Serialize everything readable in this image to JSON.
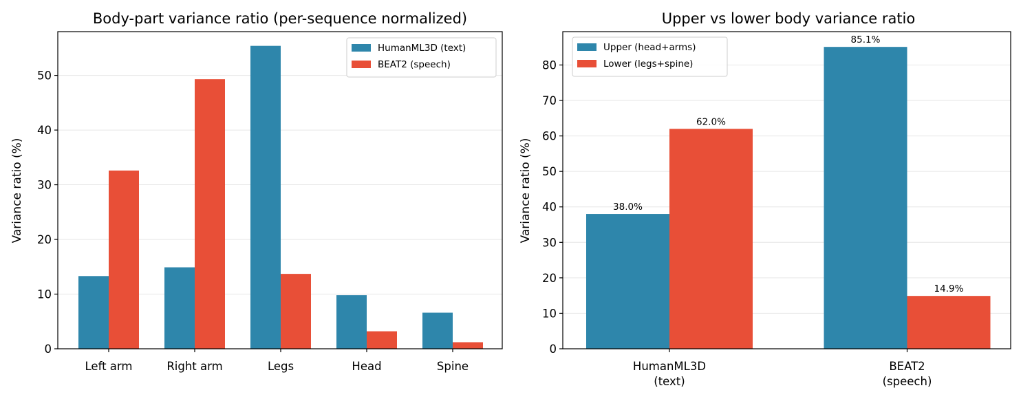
{
  "colors": {
    "blue": "#2e86ab",
    "red": "#e84f37"
  },
  "chart_data": [
    {
      "type": "bar",
      "title": "Body-part variance ratio (per-sequence normalized)",
      "xlabel": "",
      "ylabel": "Variance ratio (%)",
      "ylim": [
        0,
        58
      ],
      "yticks": [
        0,
        10,
        20,
        30,
        40,
        50
      ],
      "grid": true,
      "legend": "top-right",
      "categories": [
        "Left arm",
        "Right arm",
        "Legs",
        "Head",
        "Spine"
      ],
      "series": [
        {
          "name": "HumanML3D (text)",
          "color": "#2e86ab",
          "values": [
            13.3,
            14.9,
            55.4,
            9.8,
            6.6
          ]
        },
        {
          "name": "BEAT2 (speech)",
          "color": "#e84f37",
          "values": [
            32.6,
            49.3,
            13.7,
            3.2,
            1.2
          ]
        }
      ]
    },
    {
      "type": "bar",
      "title": "Upper vs lower body variance ratio",
      "xlabel": "",
      "ylabel": "Variance ratio (%)",
      "ylim": [
        0,
        89.4
      ],
      "yticks": [
        0,
        10,
        20,
        30,
        40,
        50,
        60,
        70,
        80
      ],
      "grid": true,
      "legend": "top-left",
      "categories": [
        [
          "HumanML3D",
          "(text)"
        ],
        [
          "BEAT2",
          "(speech)"
        ]
      ],
      "series": [
        {
          "name": "Upper (head+arms)",
          "color": "#2e86ab",
          "values": [
            38.0,
            85.1
          ],
          "labels": [
            "38.0%",
            "85.1%"
          ]
        },
        {
          "name": "Lower (legs+spine)",
          "color": "#e84f37",
          "values": [
            62.0,
            14.9
          ],
          "labels": [
            "62.0%",
            "14.9%"
          ]
        }
      ]
    }
  ]
}
